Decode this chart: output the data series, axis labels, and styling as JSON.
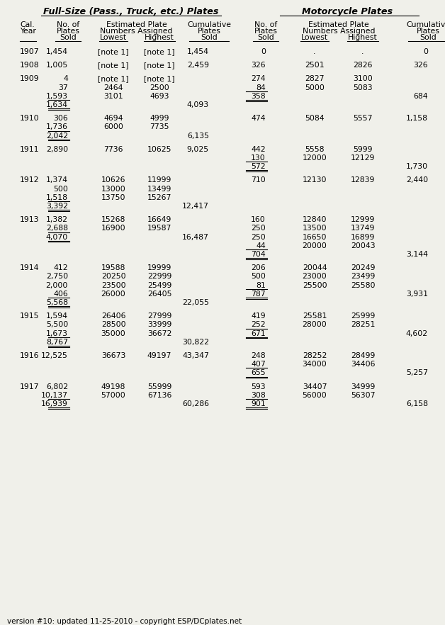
{
  "title_left": "Full-Size (Pass., Truck, etc.) Plates",
  "title_right": "Motorcycle Plates",
  "footer": "version #10: updated 11-25-2010 - copyright ESP/DCplates.net",
  "bg_color": "#f0f0ea",
  "rows": [
    {
      "year": "1907",
      "fs": [
        {
          "sold": "1,454",
          "low": "[note 1]",
          "high": "[note 1]",
          "ul": false
        }
      ],
      "fs_total": null,
      "fs_cumulative": "1,454",
      "fs_cum_row": 0,
      "mc": [
        {
          "sold": "0",
          "low": ".",
          "high": ".",
          "ul": false
        }
      ],
      "mc_total": null,
      "mc_cumulative": "0",
      "mc_cum_row": 0
    },
    {
      "year": "1908",
      "fs": [
        {
          "sold": "1,005",
          "low": "[note 1]",
          "high": "[note 1]",
          "ul": false
        }
      ],
      "fs_total": null,
      "fs_cumulative": "2,459",
      "fs_cum_row": 0,
      "mc": [
        {
          "sold": "326",
          "low": "2501",
          "high": "2826",
          "ul": false
        }
      ],
      "mc_total": null,
      "mc_cumulative": "326",
      "mc_cum_row": 0
    },
    {
      "year": "1909",
      "fs": [
        {
          "sold": "4",
          "low": "[note 1]",
          "high": "[note 1]",
          "ul": false
        },
        {
          "sold": "37",
          "low": "2464",
          "high": "2500",
          "ul": false
        },
        {
          "sold": "1,593",
          "low": "3101",
          "high": "4693",
          "ul": true
        }
      ],
      "fs_total": "1,634",
      "fs_cumulative": "4,093",
      "fs_cum_row": 3,
      "mc": [
        {
          "sold": "274",
          "low": "2827",
          "high": "3100",
          "ul": false
        },
        {
          "sold": "84",
          "low": "5000",
          "high": "5083",
          "ul": true
        }
      ],
      "mc_total": "358",
      "mc_cumulative": "684",
      "mc_cum_row": 2
    },
    {
      "year": "1910",
      "fs": [
        {
          "sold": "306",
          "low": "4694",
          "high": "4999",
          "ul": false
        },
        {
          "sold": "1,736",
          "low": "6000",
          "high": "7735",
          "ul": true
        }
      ],
      "fs_total": "2,042",
      "fs_cumulative": "6,135",
      "fs_cum_row": 2,
      "mc": [
        {
          "sold": "474",
          "low": "5084",
          "high": "5557",
          "ul": false
        }
      ],
      "mc_total": null,
      "mc_cumulative": "1,158",
      "mc_cum_row": 0
    },
    {
      "year": "1911",
      "fs": [
        {
          "sold": "2,890",
          "low": "7736",
          "high": "10625",
          "ul": false
        }
      ],
      "fs_total": null,
      "fs_cumulative": "9,025",
      "fs_cum_row": 0,
      "mc": [
        {
          "sold": "442",
          "low": "5558",
          "high": "5999",
          "ul": false
        },
        {
          "sold": "130",
          "low": "12000",
          "high": "12129",
          "ul": true
        }
      ],
      "mc_total": "572",
      "mc_cumulative": "1,730",
      "mc_cum_row": 2
    },
    {
      "year": "1912",
      "fs": [
        {
          "sold": "1,374",
          "low": "10626",
          "high": "11999",
          "ul": false
        },
        {
          "sold": "500",
          "low": "13000",
          "high": "13499",
          "ul": false
        },
        {
          "sold": "1,518",
          "low": "13750",
          "high": "15267",
          "ul": true
        }
      ],
      "fs_total": "3,392",
      "fs_cumulative": "12,417",
      "fs_cum_row": 3,
      "mc": [
        {
          "sold": "710",
          "low": "12130",
          "high": "12839",
          "ul": false
        }
      ],
      "mc_total": null,
      "mc_cumulative": "2,440",
      "mc_cum_row": 0
    },
    {
      "year": "1913",
      "fs": [
        {
          "sold": "1,382",
          "low": "15268",
          "high": "16649",
          "ul": false
        },
        {
          "sold": "2,688",
          "low": "16900",
          "high": "19587",
          "ul": true
        }
      ],
      "fs_total": "4,070",
      "fs_cumulative": "16,487",
      "fs_cum_row": 2,
      "mc": [
        {
          "sold": "160",
          "low": "12840",
          "high": "12999",
          "ul": false
        },
        {
          "sold": "250",
          "low": "13500",
          "high": "13749",
          "ul": false
        },
        {
          "sold": "250",
          "low": "16650",
          "high": "16899",
          "ul": false
        },
        {
          "sold": "44",
          "low": "20000",
          "high": "20043",
          "ul": true
        }
      ],
      "mc_total": "704",
      "mc_cumulative": "3,144",
      "mc_cum_row": 4
    },
    {
      "year": "1914",
      "fs": [
        {
          "sold": "412",
          "low": "19588",
          "high": "19999",
          "ul": false
        },
        {
          "sold": "2,750",
          "low": "20250",
          "high": "22999",
          "ul": false
        },
        {
          "sold": "2,000",
          "low": "23500",
          "high": "25499",
          "ul": false
        },
        {
          "sold": "406",
          "low": "26000",
          "high": "26405",
          "ul": true
        }
      ],
      "fs_total": "5,568",
      "fs_cumulative": "22,055",
      "fs_cum_row": 4,
      "mc": [
        {
          "sold": "206",
          "low": "20044",
          "high": "20249",
          "ul": false
        },
        {
          "sold": "500",
          "low": "23000",
          "high": "23499",
          "ul": false
        },
        {
          "sold": "81",
          "low": "25500",
          "high": "25580",
          "ul": true
        }
      ],
      "mc_total": "787",
      "mc_cumulative": "3,931",
      "mc_cum_row": 3
    },
    {
      "year": "1915",
      "fs": [
        {
          "sold": "1,594",
          "low": "26406",
          "high": "27999",
          "ul": false
        },
        {
          "sold": "5,500",
          "low": "28500",
          "high": "33999",
          "ul": false
        },
        {
          "sold": "1,673",
          "low": "35000",
          "high": "36672",
          "ul": true
        }
      ],
      "fs_total": "8,767",
      "fs_cumulative": "30,822",
      "fs_cum_row": 3,
      "mc": [
        {
          "sold": "419",
          "low": "25581",
          "high": "25999",
          "ul": false
        },
        {
          "sold": "252",
          "low": "28000",
          "high": "28251",
          "ul": true
        }
      ],
      "mc_total": "671",
      "mc_cumulative": "4,602",
      "mc_cum_row": 2
    },
    {
      "year": "1916",
      "fs": [
        {
          "sold": "12,525",
          "low": "36673",
          "high": "49197",
          "ul": false
        }
      ],
      "fs_total": null,
      "fs_cumulative": "43,347",
      "fs_cum_row": 0,
      "mc": [
        {
          "sold": "248",
          "low": "28252",
          "high": "28499",
          "ul": false
        },
        {
          "sold": "407",
          "low": "34000",
          "high": "34406",
          "ul": true
        }
      ],
      "mc_total": "655",
      "mc_cumulative": "5,257",
      "mc_cum_row": 2
    },
    {
      "year": "1917",
      "fs": [
        {
          "sold": "6,802",
          "low": "49198",
          "high": "55999",
          "ul": false
        },
        {
          "sold": "10,137",
          "low": "57000",
          "high": "67136",
          "ul": true
        }
      ],
      "fs_total": "16,939",
      "fs_cumulative": "60,286",
      "fs_cum_row": 2,
      "mc": [
        {
          "sold": "593",
          "low": "34407",
          "high": "34999",
          "ul": false
        },
        {
          "sold": "308",
          "low": "56000",
          "high": "56307",
          "ul": true
        }
      ],
      "mc_total": "901",
      "mc_cumulative": "6,158",
      "mc_cum_row": 2
    }
  ]
}
